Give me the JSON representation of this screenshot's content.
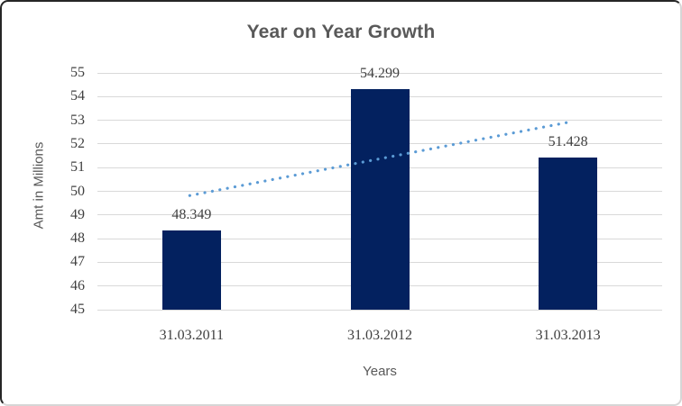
{
  "chart_data": {
    "type": "bar",
    "title": "Year on Year Growth",
    "categories": [
      "31.03.2011",
      "31.03.2012",
      "31.03.2013"
    ],
    "values": [
      48.349,
      54.299,
      51.428
    ],
    "data_labels": [
      "48.349",
      "54.299",
      "51.428"
    ],
    "xlabel": "Years",
    "ylabel": "Amt in Millions",
    "ylim": [
      45,
      55
    ],
    "yticks": [
      45,
      46,
      47,
      48,
      49,
      50,
      51,
      52,
      53,
      54,
      55
    ],
    "grid": "horizontal",
    "legend": "none",
    "trendline": {
      "type": "linear",
      "style": "dotted"
    },
    "colors": {
      "bar": "#03215f",
      "gridline": "#d9d9d9",
      "trendline": "#5b9bd5",
      "title_text": "#595959",
      "tick_text": "#404040",
      "axis_title_text": "#595959"
    }
  }
}
